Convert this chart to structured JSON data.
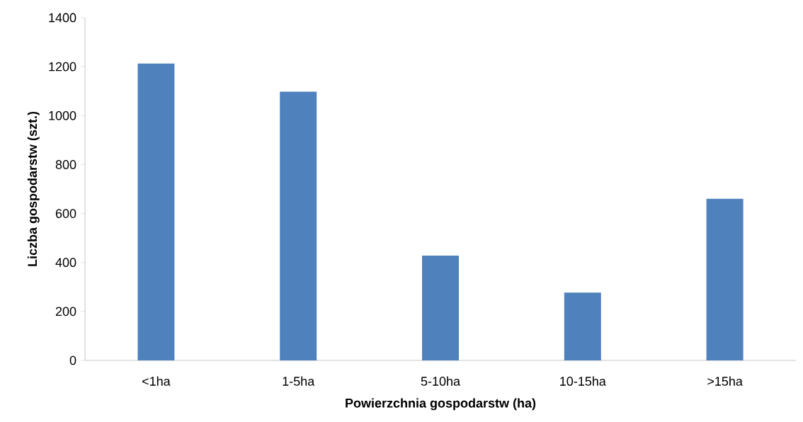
{
  "chart_data": {
    "type": "bar",
    "xlabel": "Powierzchnia gospodarstw (ha)",
    "ylabel": "Liczba gospodarstw (szt.)",
    "categories": [
      "<1ha",
      "1-5ha",
      "5-10ha",
      "10-15ha",
      ">15ha"
    ],
    "values": [
      1213,
      1098,
      428,
      277,
      660
    ],
    "color": "#4f81bd",
    "ylim": [
      0,
      1400
    ],
    "yticks": [
      0,
      200,
      400,
      600,
      800,
      1000,
      1200,
      1400
    ],
    "grid": false
  }
}
